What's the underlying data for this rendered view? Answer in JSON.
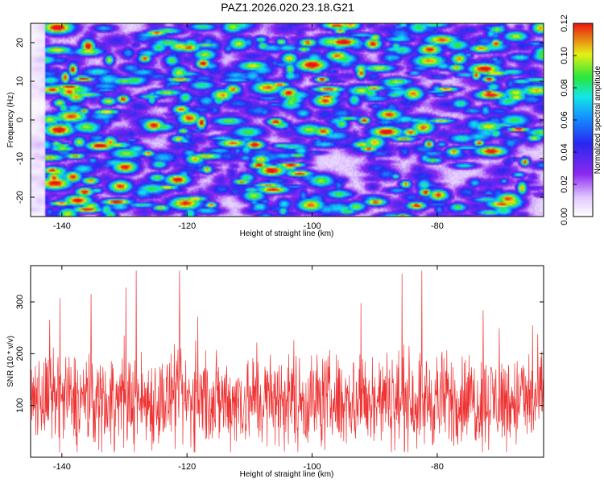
{
  "chart_data": [
    {
      "type": "heatmap",
      "title": "PAZ1.2026.020.23.18.G21",
      "xlabel": "Height of straight line (km)",
      "ylabel": "Frequency (Hz)",
      "xlim": [
        -145,
        -63
      ],
      "ylim": [
        -25,
        25
      ],
      "xticks": [
        "-140",
        "-120",
        "-100",
        "-80"
      ],
      "yticks": [
        "20",
        "10",
        "0",
        "-10",
        "-20"
      ],
      "colorbar": {
        "label": "Normalized spectral amplitude",
        "range": [
          0.0,
          0.12
        ],
        "ticks": [
          "0.00",
          "0.02",
          "0.04",
          "0.06",
          "0.08",
          "0.10",
          "0.12"
        ]
      },
      "grid": false
    },
    {
      "type": "line",
      "xlabel": "Height of straight line (km)",
      "ylabel": "SNR (10 * v/v)",
      "xlim": [
        -145,
        -63
      ],
      "ylim": [
        0,
        370
      ],
      "xticks": [
        "-140",
        "-120",
        "-100",
        "-80"
      ],
      "yticks": [
        "300",
        "200",
        "100"
      ],
      "series": [
        {
          "name": "SNR",
          "color": "#ee3333",
          "mean": 110,
          "spread": 45,
          "min": 10,
          "max": 360
        }
      ],
      "grid": false
    }
  ]
}
